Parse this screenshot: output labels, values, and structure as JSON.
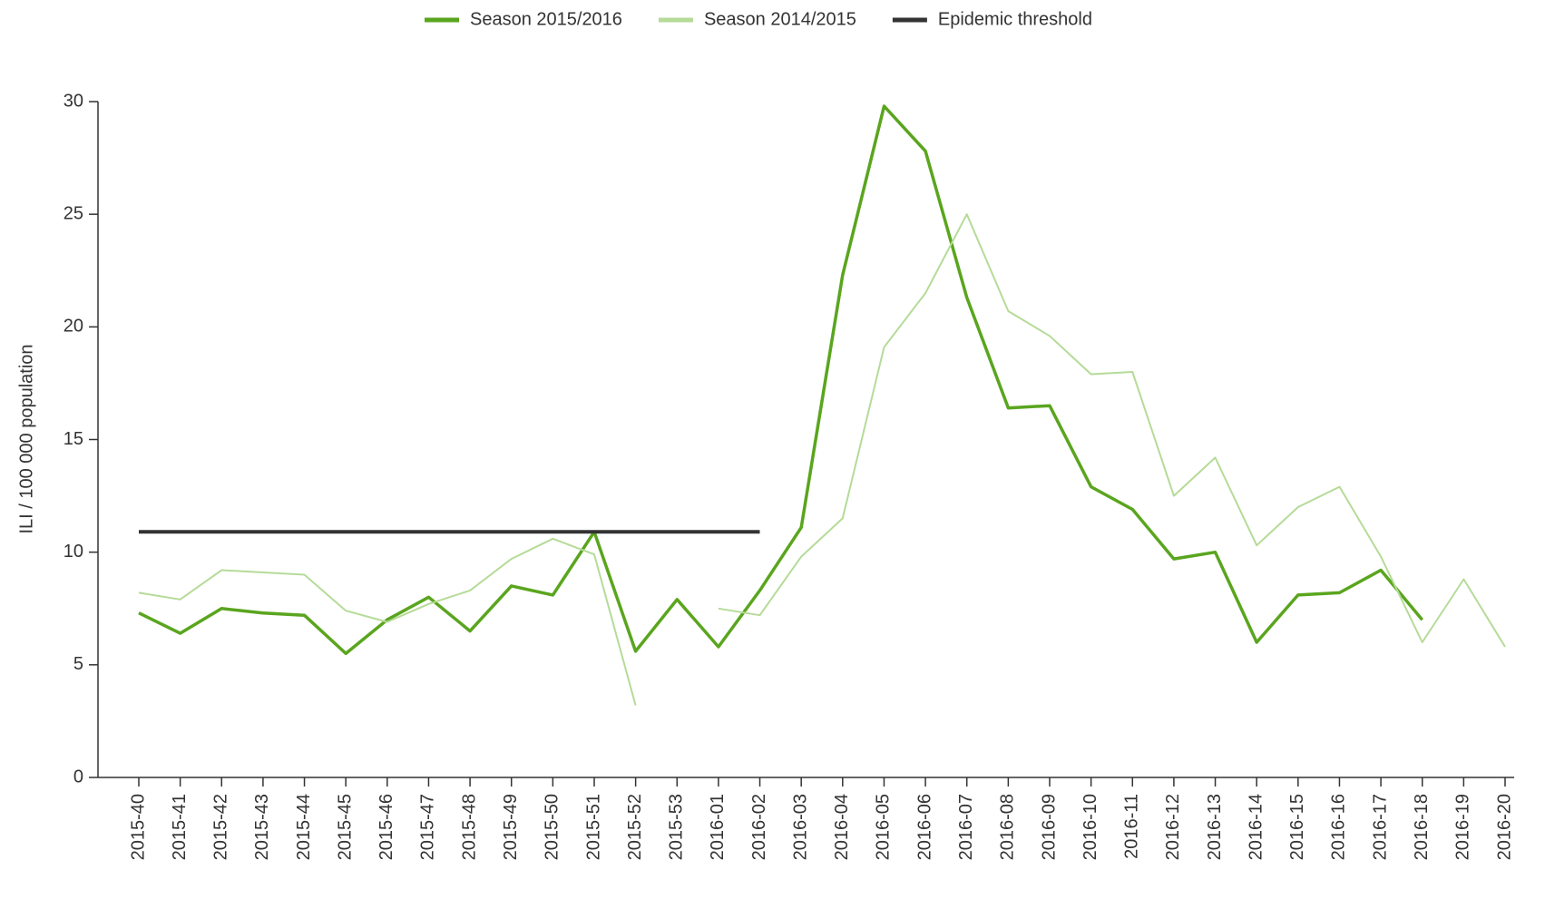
{
  "chart_data": {
    "type": "line",
    "y_label": "ILI / 100 000 population",
    "categories": [
      "2015-40",
      "2015-41",
      "2015-42",
      "2015-43",
      "2015-44",
      "2015-45",
      "2015-46",
      "2015-47",
      "2015-48",
      "2015-49",
      "2015-50",
      "2015-51",
      "2015-52",
      "2015-53",
      "2016-01",
      "2016-02",
      "2016-03",
      "2016-04",
      "2016-05",
      "2016-06",
      "2016-07",
      "2016-08",
      "2016-09",
      "2016-10",
      "2016-11",
      "2016-12",
      "2016-13",
      "2016-14",
      "2016-15",
      "2016-16",
      "2016-17",
      "2016-18",
      "2016-19",
      "2016-20"
    ],
    "series": [
      {
        "name": "Season 2015/2016",
        "color": "#5aa51e",
        "values": [
          7.3,
          6.4,
          7.5,
          7.3,
          7.2,
          5.5,
          7.0,
          8.0,
          6.5,
          8.5,
          8.1,
          10.9,
          5.6,
          7.9,
          5.8,
          8.3,
          11.1,
          22.3,
          29.8,
          27.8,
          21.3,
          16.4,
          16.5,
          12.9,
          11.9,
          9.7,
          10.0,
          6.0,
          8.1,
          8.2,
          9.2,
          7.0,
          null,
          null
        ]
      },
      {
        "name": "Season 2014/2015",
        "color": "#b5db98",
        "values": [
          8.2,
          7.9,
          9.2,
          9.1,
          9.0,
          7.4,
          6.9,
          7.7,
          8.3,
          9.7,
          10.6,
          9.9,
          3.2,
          null,
          7.5,
          7.2,
          9.8,
          11.5,
          19.1,
          21.5,
          25.0,
          20.7,
          19.6,
          17.9,
          18.0,
          12.5,
          14.2,
          10.3,
          12.0,
          12.9,
          9.8,
          6.0,
          8.8,
          5.8
        ]
      },
      {
        "name": "Epidemic threshold",
        "color": "#333333",
        "values": [
          10.9,
          10.9,
          10.9,
          10.9,
          10.9,
          10.9,
          10.9,
          10.9,
          10.9,
          10.9,
          10.9,
          10.9,
          10.9,
          10.9,
          10.9,
          10.9,
          null,
          null,
          null,
          null,
          null,
          null,
          null,
          null,
          null,
          null,
          null,
          null,
          null,
          null,
          null,
          null,
          null,
          null
        ]
      }
    ],
    "ylim": [
      0,
      30
    ],
    "yticks": [
      0,
      5,
      10,
      15,
      20,
      25,
      30
    ],
    "legend": "top"
  }
}
